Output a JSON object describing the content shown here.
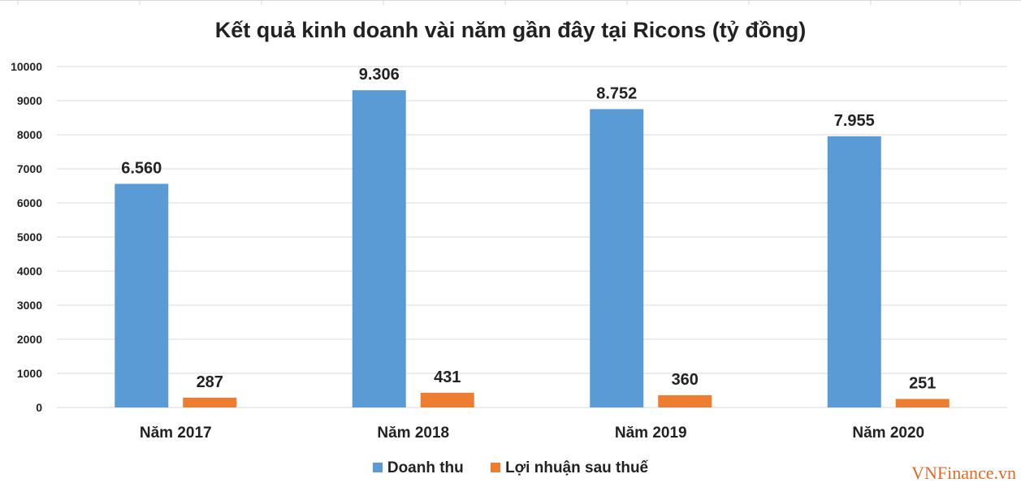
{
  "chart_data": {
    "type": "bar",
    "title": "Kết quả kinh doanh vài năm gần đây tại Ricons (tỷ đồng)",
    "categories": [
      "Năm 2017",
      "Năm 2018",
      "Năm 2019",
      "Năm 2020"
    ],
    "series": [
      {
        "name": "Doanh thu",
        "color": "#5b9bd5",
        "values": [
          6560,
          9306,
          8752,
          7955
        ],
        "labels": [
          "6.560",
          "9.306",
          "8.752",
          "7.955"
        ]
      },
      {
        "name": "Lợi nhuận sau thuế",
        "color": "#ed7d31",
        "values": [
          287,
          431,
          360,
          251
        ],
        "labels": [
          "287",
          "431",
          "360",
          "251"
        ]
      }
    ],
    "ylim": [
      0,
      10000
    ],
    "yticks": [
      0,
      1000,
      2000,
      3000,
      4000,
      5000,
      6000,
      7000,
      8000,
      9000,
      10000
    ],
    "grid": true,
    "legend_position": "bottom"
  },
  "watermark": "VNFinance.vn"
}
